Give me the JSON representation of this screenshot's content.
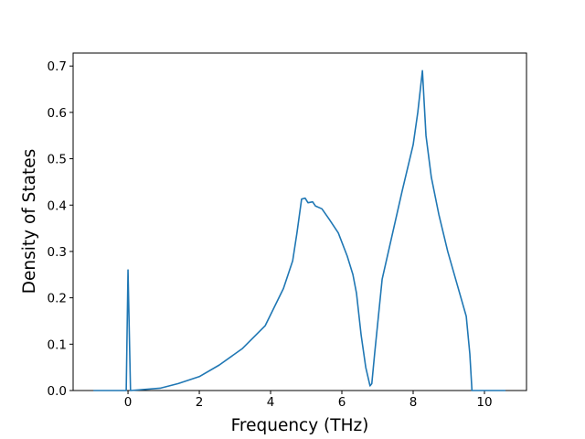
{
  "chart_data": {
    "type": "line",
    "x_label": "Frequency (THz)",
    "y_label": "Density of States",
    "xlim": [
      -1.54,
      11.18
    ],
    "ylim": [
      0,
      0.728
    ],
    "xticks": [
      0,
      2,
      4,
      6,
      8,
      10
    ],
    "yticks": [
      {
        "value": 0,
        "label": "0.0"
      },
      0.1,
      0.2,
      0.3,
      0.4,
      0.5,
      0.6,
      0.7
    ],
    "color": "#1f77b4",
    "x": [
      -0.97,
      -0.05,
      0,
      0.07,
      0.9,
      1.41,
      2.0,
      2.56,
      3.2,
      3.85,
      4.36,
      4.62,
      4.74,
      4.87,
      4.97,
      5.05,
      5.18,
      5.26,
      5.44,
      5.64,
      5.9,
      6.15,
      6.31,
      6.41,
      6.54,
      6.67,
      6.79,
      6.84,
      6.92,
      7.13,
      7.69,
      8.0,
      8.13,
      8.26,
      8.36,
      8.51,
      8.72,
      8.97,
      9.23,
      9.49,
      9.59,
      9.65,
      10.59
    ],
    "values": [
      0,
      0,
      0.26,
      0,
      0.005,
      0.015,
      0.03,
      0.055,
      0.09,
      0.14,
      0.22,
      0.28,
      0.34,
      0.413,
      0.415,
      0.405,
      0.407,
      0.398,
      0.392,
      0.37,
      0.34,
      0.29,
      0.25,
      0.21,
      0.12,
      0.05,
      0.01,
      0.015,
      0.08,
      0.24,
      0.43,
      0.53,
      0.6,
      0.69,
      0.55,
      0.46,
      0.38,
      0.3,
      0.23,
      0.16,
      0.079,
      0,
      0
    ]
  }
}
